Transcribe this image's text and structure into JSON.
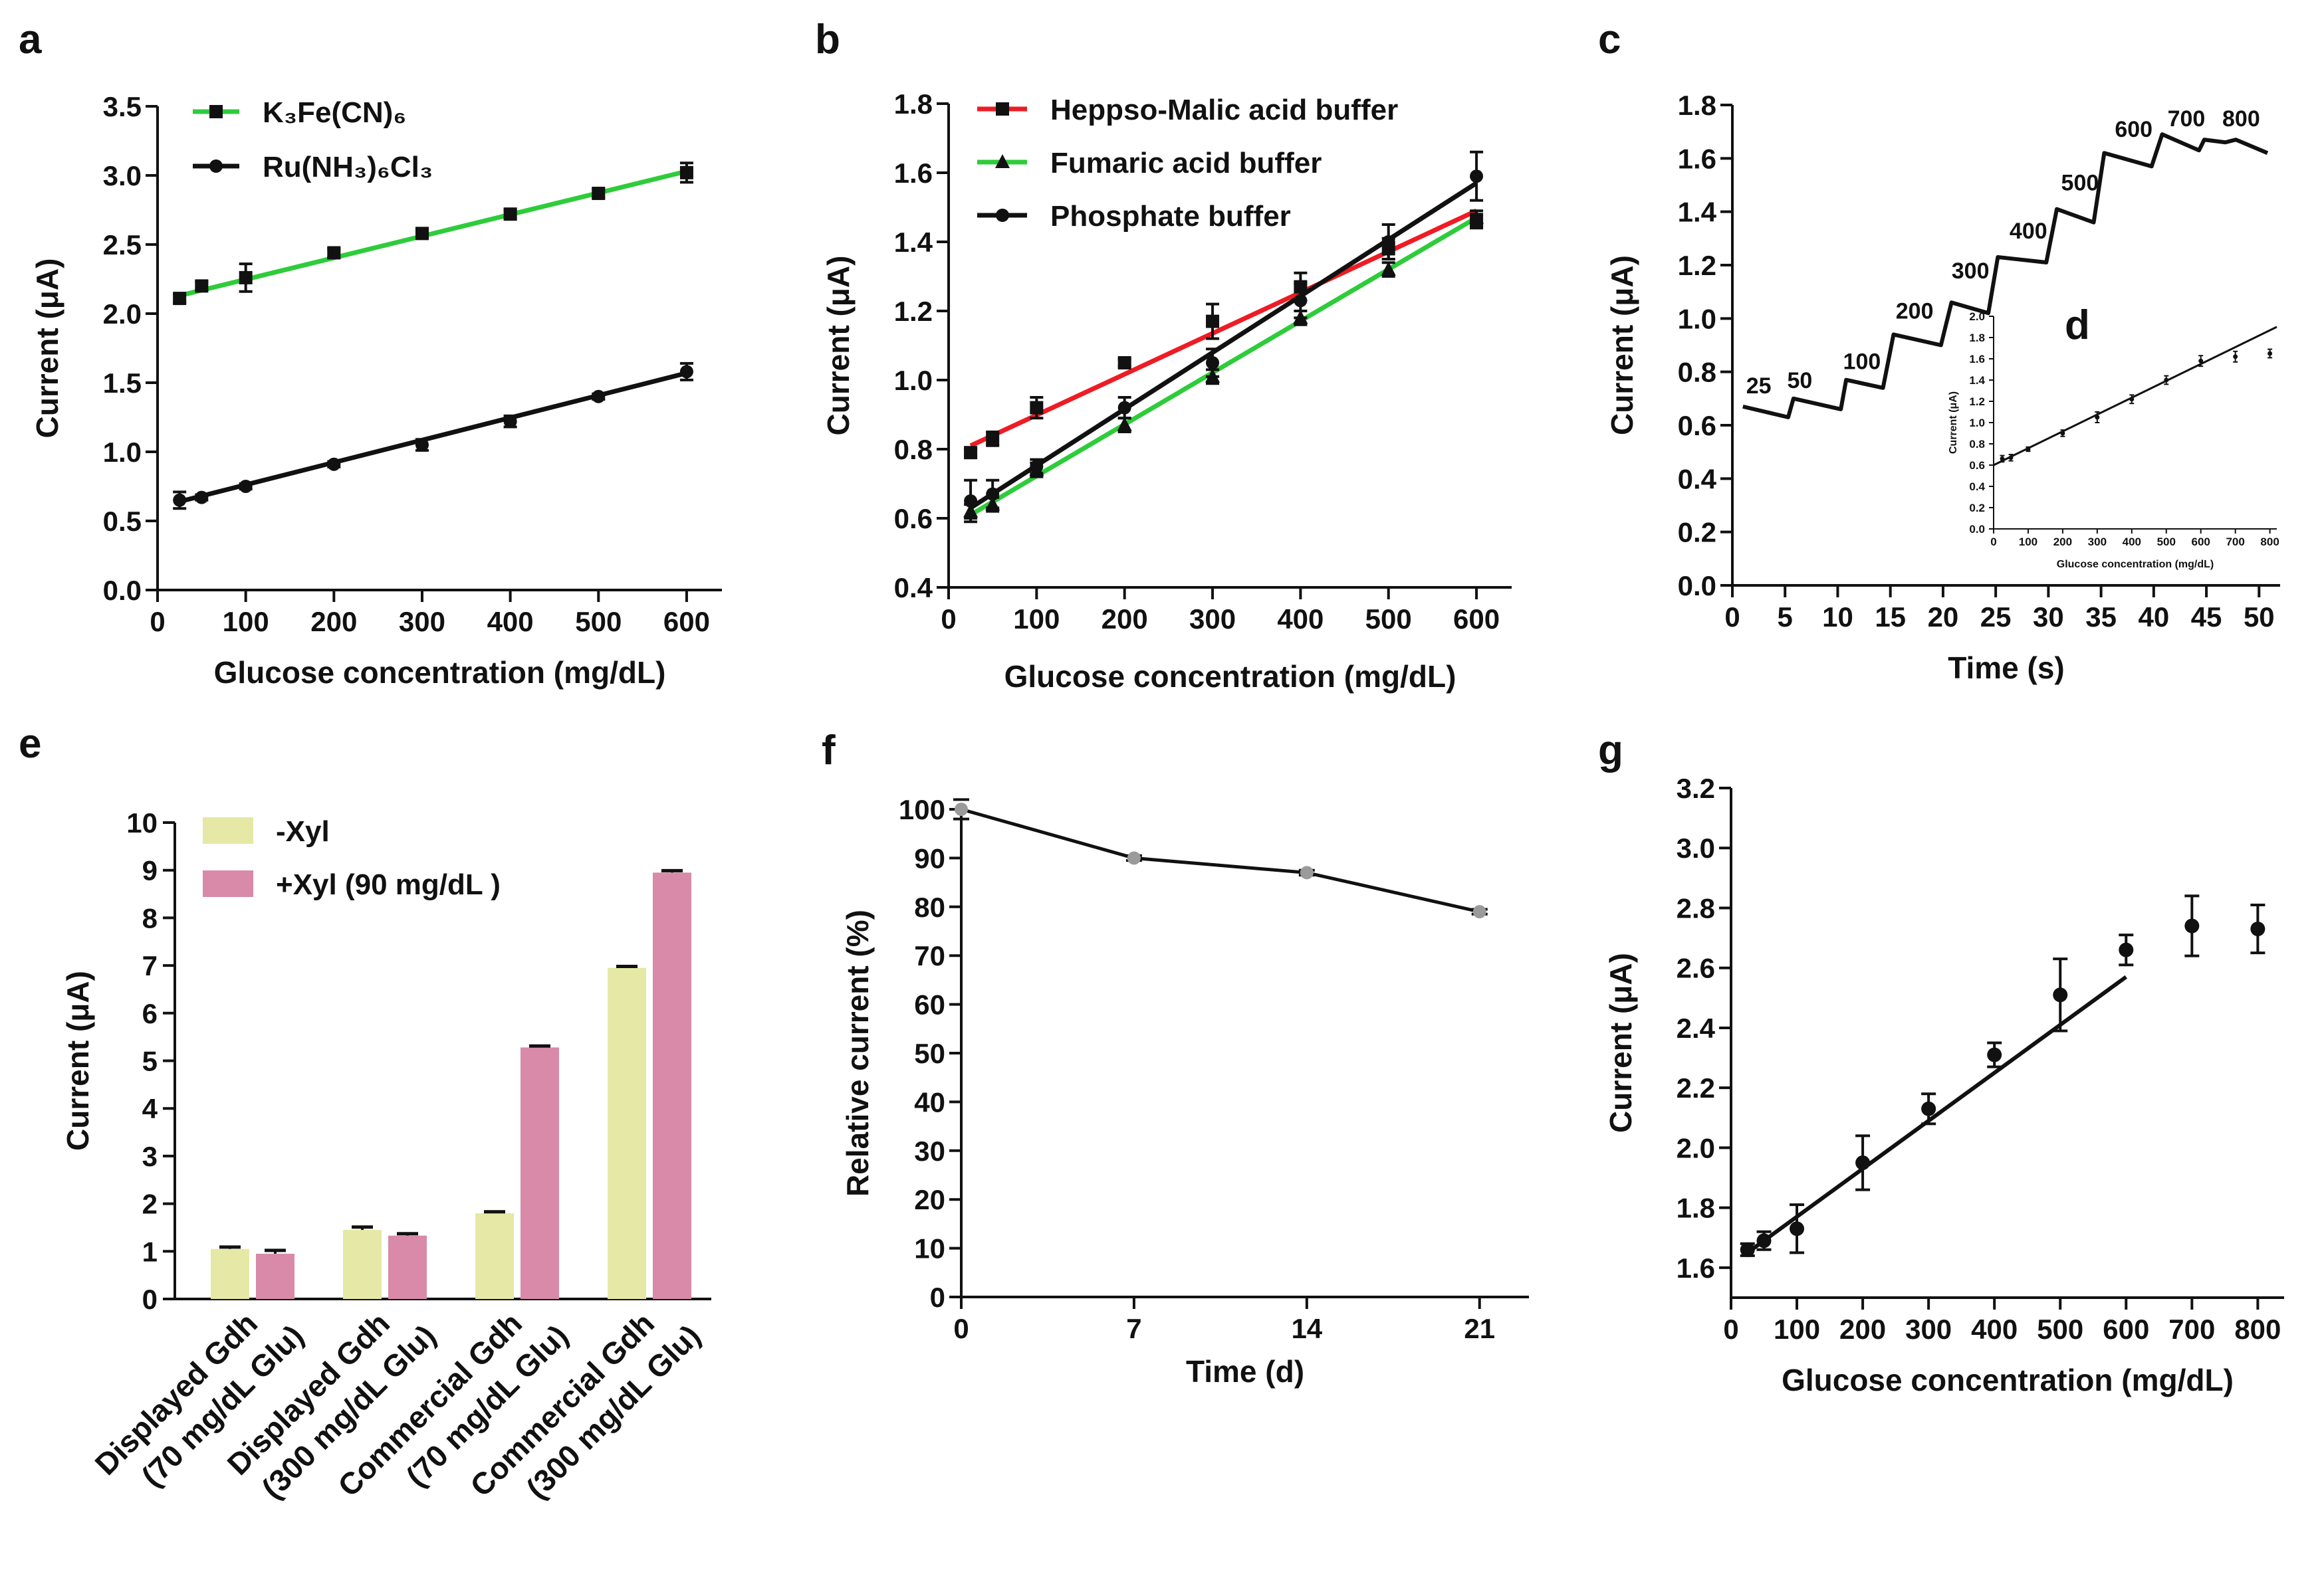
{
  "colors": {
    "black": "#111111",
    "green": "#2ecc3a",
    "red": "#ee1c24",
    "pale": "#e6e8a6",
    "pink": "#d98aa8",
    "gray": "#9a9a9a"
  },
  "chart_data": [
    {
      "panel": "a",
      "type": "line",
      "xlabel": "Glucose concentration (mg/dL)",
      "ylabel": "Current (μA)",
      "xlim": [
        0,
        640
      ],
      "ylim": [
        0,
        3.5
      ],
      "xticks": [
        0,
        100,
        200,
        300,
        400,
        500,
        600
      ],
      "yticks": [
        0.0,
        0.5,
        1.0,
        1.5,
        2.0,
        2.5,
        3.0,
        3.5
      ],
      "ytick_labels": [
        "0.0",
        "0.5",
        "1.0",
        "1.5",
        "2.0",
        "2.5",
        "3.0",
        "3.5"
      ],
      "legend": [
        "K₃Fe(CN)₆",
        "Ru(NH₃)₆Cl₃"
      ],
      "series": [
        {
          "name": "K₃Fe(CN)₆",
          "x": [
            25,
            50,
            100,
            200,
            300,
            400,
            500,
            600
          ],
          "y": [
            2.11,
            2.2,
            2.26,
            2.44,
            2.58,
            2.72,
            2.87,
            3.02
          ],
          "err": [
            0.03,
            0.03,
            0.1,
            0.03,
            0.03,
            0.03,
            0.03,
            0.07
          ],
          "fit": [
            2.13,
            3.03
          ]
        },
        {
          "name": "Ru(NH₃)₆Cl₃",
          "x": [
            25,
            50,
            100,
            200,
            300,
            400,
            500,
            600
          ],
          "y": [
            0.65,
            0.67,
            0.75,
            0.91,
            1.05,
            1.22,
            1.4,
            1.58
          ],
          "err": [
            0.06,
            0.02,
            0.02,
            0.02,
            0.04,
            0.04,
            0.02,
            0.06
          ],
          "fit": [
            0.64,
            1.57
          ]
        }
      ]
    },
    {
      "panel": "b",
      "type": "line",
      "xlabel": "Glucose concentration (mg/dL)",
      "ylabel": "Current (μA)",
      "xlim": [
        0,
        640
      ],
      "ylim": [
        0.4,
        1.8
      ],
      "xticks": [
        0,
        100,
        200,
        300,
        400,
        500,
        600
      ],
      "yticks": [
        0.4,
        0.6,
        0.8,
        1.0,
        1.2,
        1.4,
        1.6,
        1.8
      ],
      "ytick_labels": [
        "0.4",
        "0.6",
        "0.8",
        "1.0",
        "1.2",
        "1.4",
        "1.6",
        "1.8"
      ],
      "legend": [
        "Heppso-Malic acid buffer",
        "Fumaric acid buffer",
        "Phosphate buffer"
      ],
      "series": [
        {
          "name": "Heppso-Malic acid buffer",
          "x": [
            25,
            50,
            100,
            200,
            300,
            400,
            500,
            600
          ],
          "y": [
            0.79,
            0.83,
            0.92,
            1.05,
            1.17,
            1.27,
            1.38,
            1.46
          ],
          "err": [
            0.01,
            0.02,
            0.03,
            0.01,
            0.05,
            0.04,
            0.03,
            0.02
          ],
          "fit": [
            0.81,
            1.49
          ]
        },
        {
          "name": "Fumaric acid buffer",
          "x": [
            25,
            50,
            100,
            200,
            300,
            400,
            500,
            600
          ],
          "y": [
            0.62,
            0.64,
            0.74,
            0.87,
            1.01,
            1.18,
            1.32,
            1.47
          ],
          "err": [
            0.02,
            0.02,
            0.02,
            0.02,
            0.02,
            0.02,
            0.02,
            0.02
          ],
          "fit": [
            0.61,
            1.47
          ]
        },
        {
          "name": "Phosphate buffer",
          "x": [
            25,
            50,
            100,
            200,
            300,
            400,
            500,
            600
          ],
          "y": [
            0.65,
            0.67,
            0.75,
            0.92,
            1.05,
            1.23,
            1.4,
            1.59
          ],
          "err": [
            0.06,
            0.04,
            0.02,
            0.03,
            0.04,
            0.05,
            0.05,
            0.07
          ],
          "fit": [
            0.63,
            1.57
          ]
        }
      ]
    },
    {
      "panel": "c",
      "type": "line",
      "xlabel": "Time (s)",
      "ylabel": "Current (μA)",
      "xlim": [
        0,
        52
      ],
      "ylim": [
        0,
        1.8
      ],
      "xticks": [
        0,
        5,
        10,
        15,
        20,
        25,
        30,
        35,
        40,
        45,
        50
      ],
      "yticks": [
        0.0,
        0.2,
        0.4,
        0.6,
        0.8,
        1.0,
        1.2,
        1.4,
        1.6,
        1.8
      ],
      "ytick_labels": [
        "0.0",
        "0.2",
        "0.4",
        "0.6",
        "0.8",
        "1.0",
        "1.2",
        "1.4",
        "1.6",
        "1.8"
      ],
      "trace_t": [
        1,
        5.3,
        5.8,
        10.3,
        10.8,
        14.3,
        15.3,
        19.8,
        20.8,
        24.3,
        25.2,
        29.8,
        30.8,
        34.3,
        35.3,
        39.8,
        40.8,
        44.3,
        44.8,
        46.8,
        47.8,
        50.8
      ],
      "trace_i": [
        0.67,
        0.63,
        0.7,
        0.66,
        0.77,
        0.74,
        0.94,
        0.9,
        1.06,
        1.02,
        1.23,
        1.21,
        1.41,
        1.36,
        1.62,
        1.57,
        1.69,
        1.63,
        1.67,
        1.66,
        1.67,
        1.62
      ],
      "steps": [
        {
          "label": "25",
          "t": 2.5,
          "i": 0.72
        },
        {
          "label": "50",
          "t": 6.4,
          "i": 0.74
        },
        {
          "label": "100",
          "t": 12.3,
          "i": 0.81
        },
        {
          "label": "200",
          "t": 17.3,
          "i": 1.0
        },
        {
          "label": "300",
          "t": 22.6,
          "i": 1.15
        },
        {
          "label": "400",
          "t": 28.1,
          "i": 1.3
        },
        {
          "label": "500",
          "t": 33.0,
          "i": 1.48
        },
        {
          "label": "600",
          "t": 38.1,
          "i": 1.68
        },
        {
          "label": "700",
          "t": 43.1,
          "i": 1.72
        },
        {
          "label": "800",
          "t": 48.3,
          "i": 1.72
        }
      ]
    },
    {
      "panel": "d",
      "type": "scatter",
      "inset_of": "c",
      "xlabel": "Glucose concentration (mg/dL)",
      "ylabel": "Current (μA)",
      "xlim": [
        0,
        820
      ],
      "ylim": [
        0,
        2.0
      ],
      "xticks": [
        0,
        100,
        200,
        300,
        400,
        500,
        600,
        700,
        800
      ],
      "yticks": [
        0.0,
        0.2,
        0.4,
        0.6,
        0.8,
        1.0,
        1.2,
        1.4,
        1.6,
        1.8,
        2.0
      ],
      "ytick_labels": [
        "0.0",
        "0.2",
        "0.4",
        "0.6",
        "0.8",
        "1.0",
        "1.2",
        "1.4",
        "1.6",
        "1.8",
        "2.0"
      ],
      "x": [
        25,
        50,
        100,
        200,
        300,
        400,
        500,
        600,
        700,
        800
      ],
      "y": [
        0.66,
        0.67,
        0.75,
        0.9,
        1.05,
        1.22,
        1.4,
        1.58,
        1.62,
        1.65
      ],
      "err": [
        0.03,
        0.03,
        0.02,
        0.03,
        0.05,
        0.04,
        0.04,
        0.05,
        0.05,
        0.04
      ],
      "fit": {
        "x0": 0,
        "y0": 0.6,
        "x1": 820,
        "y1": 1.9
      }
    },
    {
      "panel": "e",
      "type": "bar",
      "ylabel": "Current (μA)",
      "ylim": [
        0,
        10
      ],
      "yticks": [
        0,
        1,
        2,
        3,
        4,
        5,
        6,
        7,
        8,
        9,
        10
      ],
      "legend": [
        "-Xyl",
        "+Xyl (90 mg/dL )"
      ],
      "categories": [
        [
          "Displayed Gdh",
          "(70 mg/dL Glu)"
        ],
        [
          "Displayed Gdh",
          "(300 mg/dL Glu)"
        ],
        [
          "Commercial Gdh",
          "(70 mg/dL Glu)"
        ],
        [
          "Commercial Gdh",
          "(300 mg/dL Glu)"
        ]
      ],
      "series": [
        {
          "name": "-Xyl",
          "values": [
            1.05,
            1.45,
            1.8,
            6.95
          ],
          "err": [
            0.04,
            0.06,
            0.03,
            0.03
          ]
        },
        {
          "name": "+Xyl (90 mg/dL )",
          "values": [
            0.95,
            1.33,
            5.28,
            8.95
          ],
          "err": [
            0.07,
            0.04,
            0.03,
            0.04
          ]
        }
      ]
    },
    {
      "panel": "f",
      "type": "line",
      "xlabel": "Time (d)",
      "ylabel": "Relative current (%)",
      "xlim": [
        0,
        23
      ],
      "ylim": [
        0,
        100
      ],
      "xticks": [
        0,
        7,
        14,
        21
      ],
      "yticks": [
        0,
        10,
        20,
        30,
        40,
        50,
        60,
        70,
        80,
        90,
        100
      ],
      "x": [
        0,
        7,
        14,
        21
      ],
      "y": [
        100,
        90,
        87,
        79
      ],
      "err": [
        2,
        0.5,
        0.5,
        0.5
      ]
    },
    {
      "panel": "g",
      "type": "scatter",
      "xlabel": "Glucose concentration (mg/dL)",
      "ylabel": "Current (μA)",
      "xlim": [
        0,
        840
      ],
      "ylim": [
        1.5,
        3.2
      ],
      "xticks": [
        0,
        100,
        200,
        300,
        400,
        500,
        600,
        700,
        800
      ],
      "yticks": [
        1.6,
        1.8,
        2.0,
        2.2,
        2.4,
        2.6,
        2.8,
        3.0,
        3.2
      ],
      "ytick_labels": [
        "1.6",
        "1.8",
        "2.0",
        "2.2",
        "2.4",
        "2.6",
        "2.8",
        "3.0",
        "3.2"
      ],
      "x": [
        25,
        50,
        100,
        200,
        300,
        400,
        500,
        600,
        700,
        800
      ],
      "y": [
        1.66,
        1.69,
        1.73,
        1.95,
        2.13,
        2.31,
        2.51,
        2.66,
        2.74,
        2.73
      ],
      "err": [
        0.02,
        0.03,
        0.08,
        0.09,
        0.05,
        0.04,
        0.12,
        0.05,
        0.1,
        0.08
      ],
      "fit": {
        "x0": 25,
        "y0": 1.65,
        "x1": 600,
        "y1": 2.57
      }
    }
  ]
}
